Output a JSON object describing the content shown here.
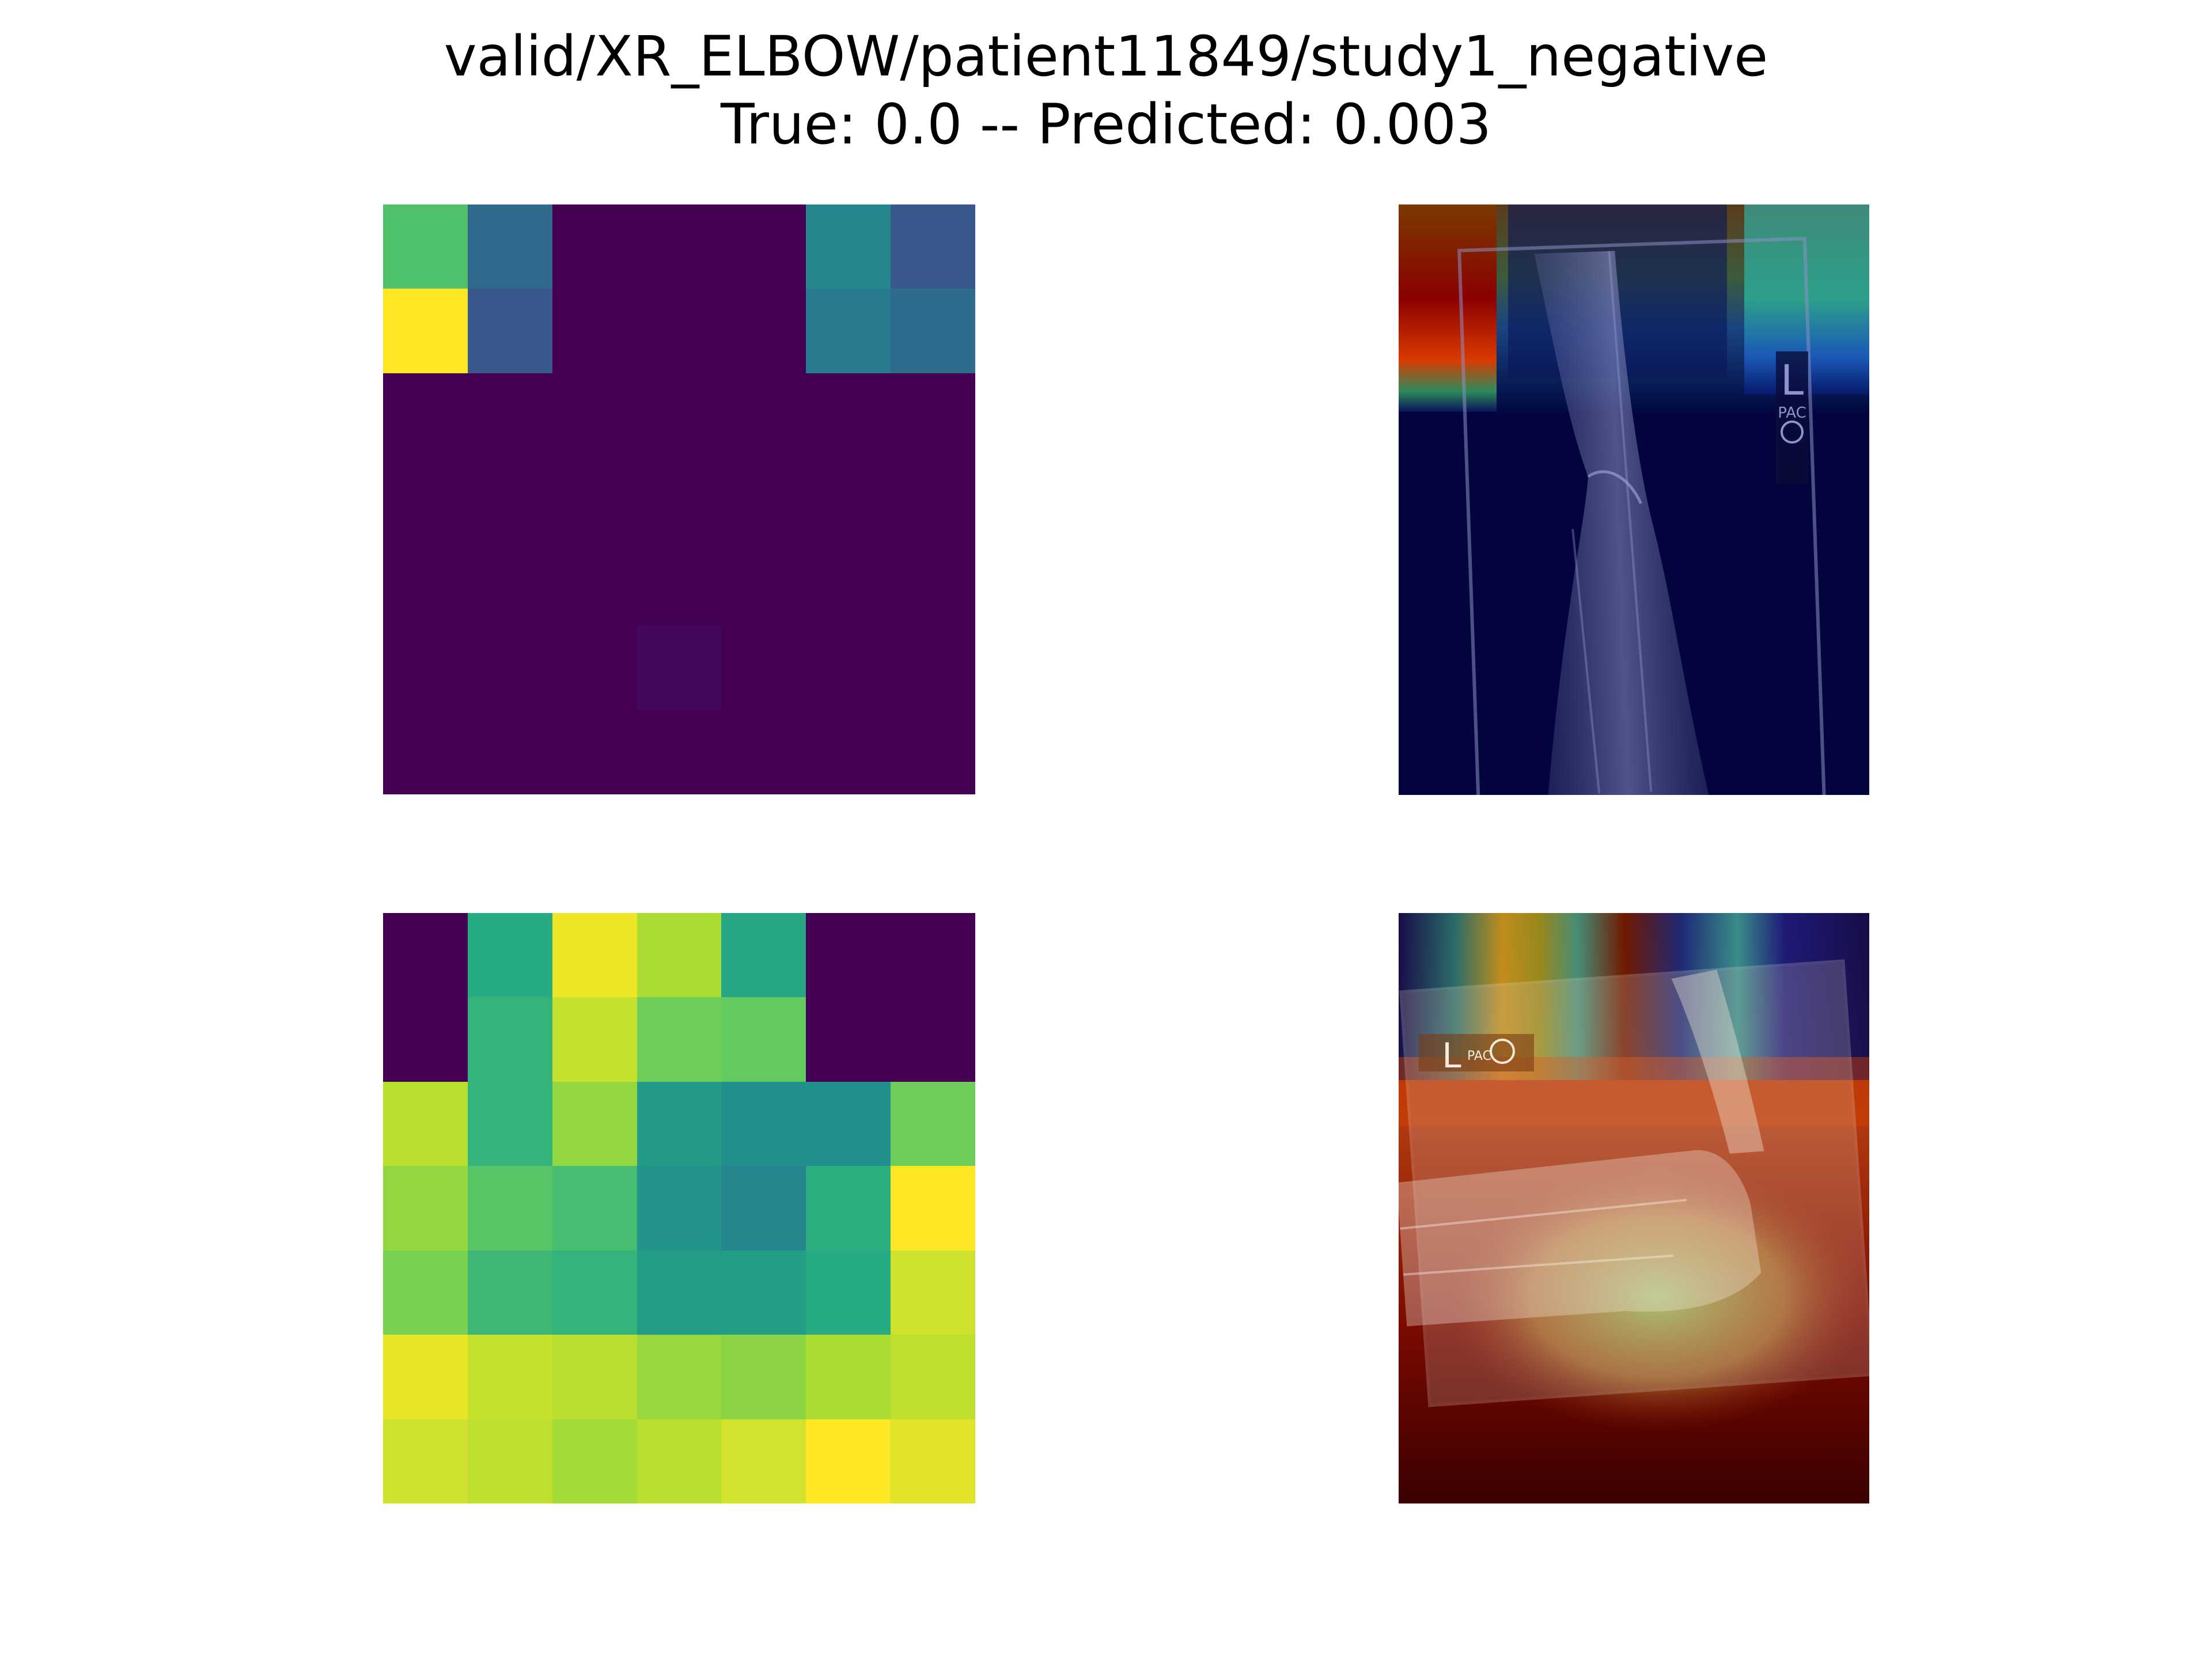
{
  "figure": {
    "title_line1": "valid/XR_ELBOW/patient11849/study1_negative",
    "title_line2": "True: 0.0 -- Predicted: 0.003"
  },
  "chart_data": [
    {
      "type": "heatmap",
      "colormap": "viridis",
      "vrange": [
        0,
        1
      ],
      "grid": false,
      "axes": "off",
      "rows": [
        [
          0.72,
          0.35,
          0.0,
          0.0,
          0.0,
          0.46,
          0.28
        ],
        [
          1.0,
          0.28,
          0.0,
          0.0,
          0.0,
          0.42,
          0.36
        ],
        [
          0.0,
          0.0,
          0.0,
          0.0,
          0.0,
          0.0,
          0.0
        ],
        [
          0.0,
          0.0,
          0.0,
          0.0,
          0.0,
          0.0,
          0.0
        ],
        [
          0.0,
          0.0,
          0.0,
          0.0,
          0.0,
          0.0,
          0.0
        ],
        [
          0.0,
          0.0,
          0.0,
          0.02,
          0.0,
          0.0,
          0.0
        ],
        [
          0.0,
          0.0,
          0.0,
          0.0,
          0.0,
          0.0,
          0.0
        ]
      ]
    },
    {
      "type": "heatmap",
      "colormap": "jet-over-xray",
      "image": "elbow radiograph (lateral view), activation map overlaid",
      "marker_text": "L",
      "marker_subtext": "PAC"
    },
    {
      "type": "heatmap",
      "colormap": "viridis",
      "vrange": [
        0,
        1
      ],
      "grid": false,
      "axes": "off",
      "rows": [
        [
          0.0,
          0.62,
          0.98,
          0.88,
          0.6,
          0.0,
          0.0
        ],
        [
          0.0,
          0.66,
          0.92,
          0.78,
          0.76,
          0.0,
          0.0
        ],
        [
          0.9,
          0.66,
          0.84,
          0.55,
          0.5,
          0.5,
          0.78
        ],
        [
          0.84,
          0.74,
          0.7,
          0.52,
          0.46,
          0.64,
          1.0
        ],
        [
          0.8,
          0.68,
          0.66,
          0.56,
          0.56,
          0.62,
          0.93
        ],
        [
          0.97,
          0.92,
          0.9,
          0.85,
          0.83,
          0.88,
          0.91
        ],
        [
          0.93,
          0.91,
          0.87,
          0.9,
          0.94,
          1.0,
          0.96
        ]
      ]
    },
    {
      "type": "heatmap",
      "colormap": "jet-over-xray",
      "image": "elbow radiograph (lateral view), activation map overlaid",
      "marker_text": "L",
      "marker_subtext": "PAC"
    }
  ]
}
